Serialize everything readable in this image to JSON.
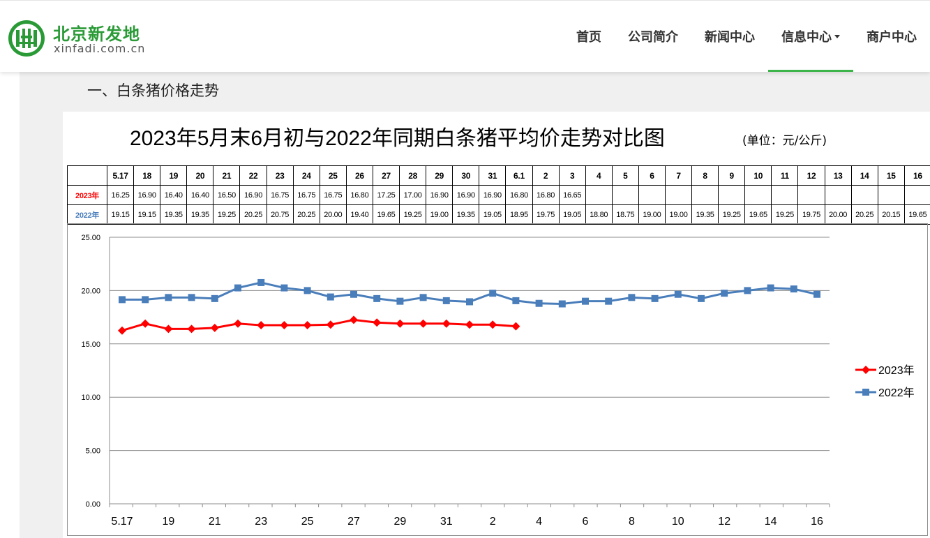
{
  "header": {
    "logo_cn": "北京新发地",
    "logo_en": "xinfadi.com.cn",
    "nav": [
      {
        "label": "首页",
        "active": false
      },
      {
        "label": "公司简介",
        "active": false
      },
      {
        "label": "新闻中心",
        "active": false
      },
      {
        "label": "信息中心",
        "active": true,
        "dropdown": true
      },
      {
        "label": "商户中心",
        "active": false
      }
    ],
    "brand_color": "#2a9a36"
  },
  "main": {
    "section_heading": "一、白条猪价格走势"
  },
  "chart_data": {
    "type": "line",
    "title": "2023年5月末6月初与2022年同期白条猪平均价走势对比图",
    "unit": "(单位：元/公斤)",
    "categories": [
      "5.17",
      "18",
      "19",
      "20",
      "21",
      "22",
      "23",
      "24",
      "25",
      "26",
      "27",
      "28",
      "29",
      "30",
      "31",
      "6.1",
      "2",
      "3",
      "4",
      "5",
      "6",
      "7",
      "8",
      "9",
      "10",
      "11",
      "12",
      "13",
      "14",
      "15",
      "16"
    ],
    "x_tick_labels": [
      "5.17",
      "19",
      "21",
      "23",
      "25",
      "27",
      "29",
      "31",
      "2",
      "4",
      "6",
      "8",
      "10",
      "12",
      "14",
      "16"
    ],
    "series": [
      {
        "name": "2023年",
        "color": "#ff0000",
        "marker": "diamond",
        "values": [
          16.25,
          16.9,
          16.4,
          16.4,
          16.5,
          16.9,
          16.75,
          16.75,
          16.75,
          16.8,
          17.25,
          17.0,
          16.9,
          16.9,
          16.9,
          16.8,
          16.8,
          16.65,
          null,
          null,
          null,
          null,
          null,
          null,
          null,
          null,
          null,
          null,
          null,
          null,
          null
        ],
        "table_values": [
          "16.25",
          "16.90",
          "16.40",
          "16.40",
          "16.50",
          "16.90",
          "16.75",
          "16.75",
          "16.75",
          "16.80",
          "17.25",
          "17.00",
          "16.90",
          "16.90",
          "16.90",
          "16.80",
          "16.80",
          "16.65",
          "",
          "",
          "",
          "",
          "",
          "",
          "",
          "",
          "",
          "",
          "",
          "",
          ""
        ]
      },
      {
        "name": "2022年",
        "color": "#4a7ebb",
        "marker": "square",
        "values": [
          19.15,
          19.15,
          19.35,
          19.35,
          19.25,
          20.25,
          20.75,
          20.25,
          20.0,
          19.4,
          19.65,
          19.25,
          19.0,
          19.35,
          19.05,
          18.95,
          19.75,
          19.05,
          18.8,
          18.75,
          19.0,
          19.0,
          19.35,
          19.25,
          19.65,
          19.25,
          19.75,
          20.0,
          20.25,
          20.15,
          19.65
        ],
        "table_values": [
          "19.15",
          "19.15",
          "19.35",
          "19.35",
          "19.25",
          "20.25",
          "20.75",
          "20.25",
          "20.00",
          "19.40",
          "19.65",
          "19.25",
          "19.00",
          "19.35",
          "19.05",
          "18.95",
          "19.75",
          "19.05",
          "18.80",
          "18.75",
          "19.00",
          "19.00",
          "19.35",
          "19.25",
          "19.65",
          "19.25",
          "19.75",
          "20.00",
          "20.25",
          "20.15",
          "19.65"
        ]
      }
    ],
    "y_ticks": [
      "0.00",
      "5.00",
      "10.00",
      "15.00",
      "20.00",
      "25.00"
    ],
    "ylim": [
      0,
      25
    ],
    "grid": true,
    "legend_position": "right"
  }
}
